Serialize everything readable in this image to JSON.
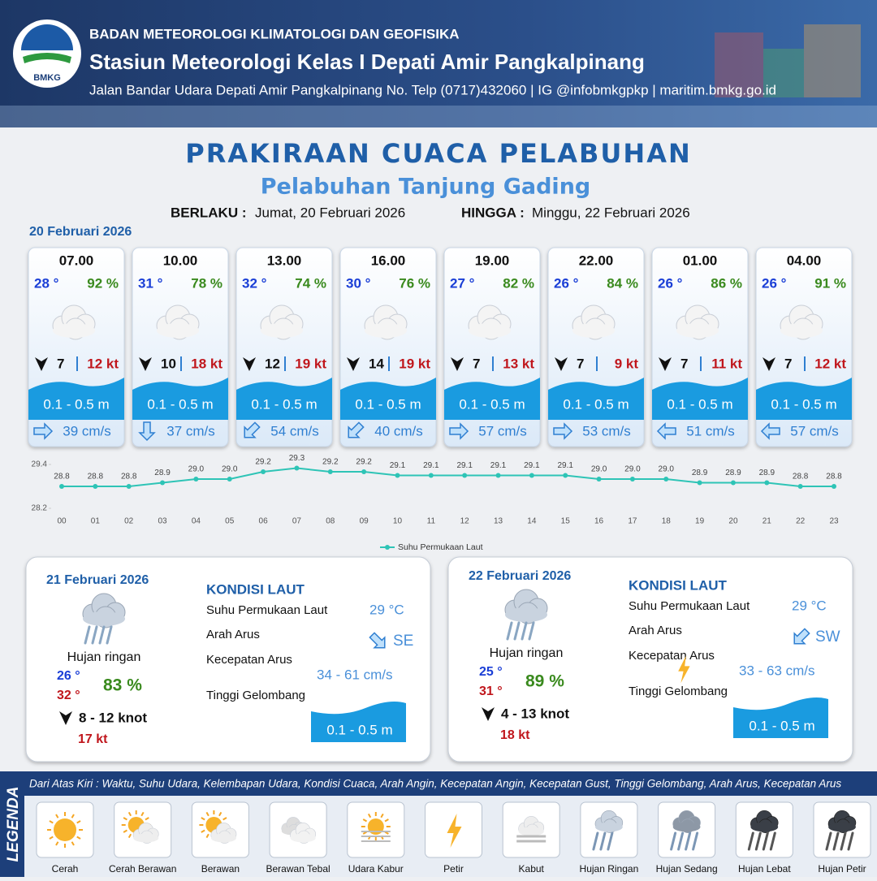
{
  "header": {
    "logo": "BMKG",
    "agency": "BADAN METEOROLOGI KLIMATOLOGI DAN GEOFISIKA",
    "station": "Stasiun Meteorologi Kelas I Depati Amir Pangkalpinang",
    "contact": "Jalan Bandar Udara Depati Amir Pangkalpinang No. Telp (0717)432060 | IG @infobmkgpkp | maritim.bmkg.go.id"
  },
  "title": "PRAKIRAAN CUACA PELABUHAN",
  "subtitle": "Pelabuhan Tanjung Gading",
  "validity": {
    "from_label": "BERLAKU :",
    "from": "Jumat, 20 Februari 2026",
    "to_label": "HINGGA :",
    "to": "Minggu, 22 Februari 2026"
  },
  "day1": {
    "date": "20 Februari 2026",
    "slots": [
      {
        "time": "07.00",
        "temp": "28 °",
        "humidity": "92 %",
        "wind": "7",
        "gust": "12 kt",
        "wave": "0.1 - 0.5 m",
        "current": "39 cm/s",
        "current_arrow": "E"
      },
      {
        "time": "10.00",
        "temp": "31 °",
        "humidity": "78 %",
        "wind": "10",
        "gust": "18 kt",
        "wave": "0.1 - 0.5 m",
        "current": "37 cm/s",
        "current_arrow": "S"
      },
      {
        "time": "13.00",
        "temp": "32 °",
        "humidity": "74 %",
        "wind": "12",
        "gust": "19 kt",
        "wave": "0.1 - 0.5 m",
        "current": "54 cm/s",
        "current_arrow": "SW"
      },
      {
        "time": "16.00",
        "temp": "30 °",
        "humidity": "76 %",
        "wind": "14",
        "gust": "19 kt",
        "wave": "0.1 - 0.5 m",
        "current": "40 cm/s",
        "current_arrow": "SW"
      },
      {
        "time": "19.00",
        "temp": "27 °",
        "humidity": "82 %",
        "wind": "7",
        "gust": "13 kt",
        "wave": "0.1 - 0.5 m",
        "current": "57 cm/s",
        "current_arrow": "E"
      },
      {
        "time": "22.00",
        "temp": "26 °",
        "humidity": "84 %",
        "wind": "7",
        "gust": "9 kt",
        "wave": "0.1 - 0.5 m",
        "current": "53 cm/s",
        "current_arrow": "E"
      },
      {
        "time": "01.00",
        "temp": "26 °",
        "humidity": "86 %",
        "wind": "7",
        "gust": "11 kt",
        "wave": "0.1 - 0.5 m",
        "current": "51 cm/s",
        "current_arrow": "W"
      },
      {
        "time": "04.00",
        "temp": "26 °",
        "humidity": "91 %",
        "wind": "7",
        "gust": "12 kt",
        "wave": "0.1 - 0.5 m",
        "current": "57 cm/s",
        "current_arrow": "W"
      }
    ]
  },
  "chart_data": {
    "type": "line",
    "categories": [
      "00",
      "01",
      "02",
      "03",
      "04",
      "05",
      "06",
      "07",
      "08",
      "09",
      "10",
      "11",
      "12",
      "13",
      "14",
      "15",
      "16",
      "17",
      "18",
      "19",
      "20",
      "21",
      "22",
      "23"
    ],
    "series": [
      {
        "name": "Suhu Permukaan Laut",
        "color": "#2ec4b6",
        "values": [
          28.8,
          28.8,
          28.8,
          28.9,
          29.0,
          29.0,
          29.2,
          29.3,
          29.2,
          29.2,
          29.1,
          29.1,
          29.1,
          29.1,
          29.1,
          29.1,
          29.0,
          29.0,
          29.0,
          28.9,
          28.9,
          28.9,
          28.8,
          28.8
        ],
        "value_labels": [
          "28.8",
          "28.8",
          "28.8",
          "28.9",
          "29.0",
          "29.0",
          "29.2",
          "29.3",
          "29.2",
          "29.2",
          "29.1",
          "29.1",
          "29.1",
          "29.1",
          "29.1",
          "29.1",
          "29.0",
          "29.0",
          "29.0",
          "28.9",
          "28.9",
          "28.9",
          "28.8",
          "28.8"
        ]
      }
    ],
    "ylim": [
      28.2,
      29.4
    ],
    "yticks": [
      28.2,
      29.4
    ]
  },
  "days": [
    {
      "date": "21 Februari 2026",
      "condition": "Hujan ringan",
      "temp_min": "26 °",
      "temp_max": "32 °",
      "humidity": "83 %",
      "wind": "8  - 12 knot",
      "gust": "17 kt",
      "section": "KONDISI LAUT",
      "sst_label": "Suhu Permukaan Laut",
      "sst": "29 °C",
      "dir_label": "Arah Arus",
      "dir": "SE",
      "speed_label": "Kecepatan Arus",
      "speed": "34  - 61 cm/s",
      "wave_label": "Tinggi Gelombang",
      "wave": "0.1 - 0.5 m"
    },
    {
      "date": "22 Februari 2026",
      "condition": "Hujan ringan",
      "temp_min": "25 °",
      "temp_max": "31 °",
      "humidity": "89 %",
      "wind": "4  - 13 knot",
      "gust": "18 kt",
      "section": "KONDISI LAUT",
      "sst_label": "Suhu Permukaan Laut",
      "sst": "29 °C",
      "dir_label": "Arah Arus",
      "dir": "SW",
      "speed_label": "Kecepatan Arus",
      "speed": "33  - 63 cm/s",
      "wave_label": "Tinggi Gelombang",
      "wave": "0.1 - 0.5 m"
    }
  ],
  "legend": {
    "title": "LEGENDA",
    "description": "Dari Atas Kiri : Waktu, Suhu Udara, Kelembapan Udara, Kondisi Cuaca, Arah Angin, Kecepatan Angin, Kecepatan Gust, Tinggi Gelombang, Arah Arus, Kecepatan Arus",
    "items": [
      "Cerah",
      "Cerah Berawan",
      "Berawan",
      "Berawan Tebal",
      "Udara Kabur",
      "Petir",
      "Kabut",
      "Hujan Ringan",
      "Hujan Sedang",
      "Hujan Lebat",
      "Hujan Petir"
    ]
  }
}
